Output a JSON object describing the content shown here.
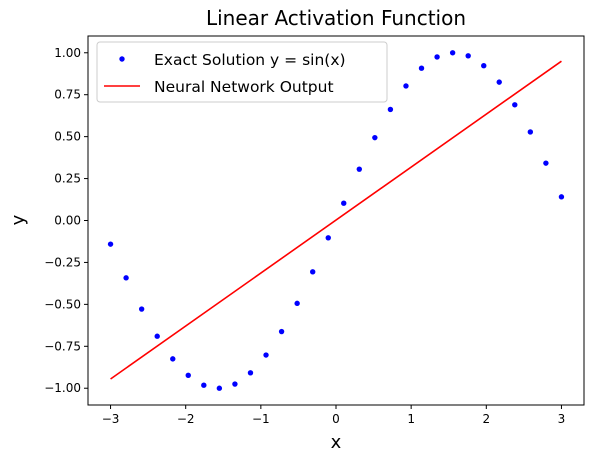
{
  "chart_data": {
    "type": "line",
    "title": "Linear Activation Function",
    "xlabel": "x",
    "ylabel": "y",
    "xlim": [
      -3.3,
      3.3
    ],
    "ylim": [
      -1.1,
      1.1
    ],
    "xticks": [
      -3,
      -2,
      -1,
      0,
      1,
      2,
      3
    ],
    "xtick_labels": [
      "−3",
      "−2",
      "−1",
      "0",
      "1",
      "2",
      "3"
    ],
    "yticks": [
      -1.0,
      -0.75,
      -0.5,
      -0.25,
      0.0,
      0.25,
      0.5,
      0.75,
      1.0
    ],
    "ytick_labels": [
      "−1.00",
      "−0.75",
      "−0.50",
      "−0.25",
      "0.00",
      "0.25",
      "0.50",
      "0.75",
      "1.00"
    ],
    "grid": false,
    "legend_position": "top-left",
    "series": [
      {
        "name": "Exact Solution y = sin(x)",
        "style": "scatter",
        "color": "#0000ff",
        "x": [
          -3.0,
          -2.793,
          -2.586,
          -2.379,
          -2.172,
          -1.966,
          -1.759,
          -1.552,
          -1.345,
          -1.138,
          -0.931,
          -0.724,
          -0.517,
          -0.31,
          -0.103,
          0.103,
          0.31,
          0.517,
          0.724,
          0.931,
          1.138,
          1.345,
          1.552,
          1.759,
          1.966,
          2.172,
          2.379,
          2.586,
          2.793,
          3.0
        ],
        "y": [
          -0.141,
          -0.342,
          -0.528,
          -0.69,
          -0.825,
          -0.923,
          -0.982,
          -1.0,
          -0.975,
          -0.908,
          -0.802,
          -0.662,
          -0.494,
          -0.306,
          -0.103,
          0.103,
          0.306,
          0.494,
          0.662,
          0.802,
          0.908,
          0.975,
          1.0,
          0.982,
          0.923,
          0.825,
          0.69,
          0.528,
          0.342,
          0.141
        ]
      },
      {
        "name": "Neural Network Output",
        "style": "line",
        "color": "#ff0000",
        "x": [
          -3.0,
          3.0
        ],
        "y": [
          -0.945,
          0.95
        ]
      }
    ]
  }
}
